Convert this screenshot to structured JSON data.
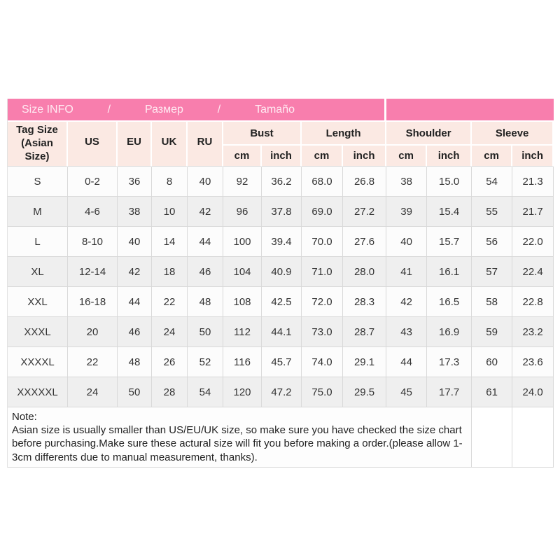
{
  "header": {
    "items": [
      "Size INFO",
      "/",
      "Размер",
      "/",
      "Tamaño"
    ]
  },
  "table": {
    "tag_size_label": "Tag Size\n(Asian Size)",
    "size_columns": [
      "US",
      "EU",
      "UK",
      "RU"
    ],
    "groups": [
      {
        "label": "Bust"
      },
      {
        "label": "Length"
      },
      {
        "label": "Shoulder"
      },
      {
        "label": "Sleeve"
      }
    ],
    "unit_labels": [
      "cm",
      "inch"
    ],
    "rows": [
      {
        "cells": [
          "S",
          "0-2",
          "36",
          "8",
          "40",
          "92",
          "36.2",
          "68.0",
          "26.8",
          "38",
          "15.0",
          "54",
          "21.3"
        ]
      },
      {
        "cells": [
          "M",
          "4-6",
          "38",
          "10",
          "42",
          "96",
          "37.8",
          "69.0",
          "27.2",
          "39",
          "15.4",
          "55",
          "21.7"
        ]
      },
      {
        "cells": [
          "L",
          "8-10",
          "40",
          "14",
          "44",
          "100",
          "39.4",
          "70.0",
          "27.6",
          "40",
          "15.7",
          "56",
          "22.0"
        ]
      },
      {
        "cells": [
          "XL",
          "12-14",
          "42",
          "18",
          "46",
          "104",
          "40.9",
          "71.0",
          "28.0",
          "41",
          "16.1",
          "57",
          "22.4"
        ]
      },
      {
        "cells": [
          "XXL",
          "16-18",
          "44",
          "22",
          "48",
          "108",
          "42.5",
          "72.0",
          "28.3",
          "42",
          "16.5",
          "58",
          "22.8"
        ]
      },
      {
        "cells": [
          "XXXL",
          "20",
          "46",
          "24",
          "50",
          "112",
          "44.1",
          "73.0",
          "28.7",
          "43",
          "16.9",
          "59",
          "23.2"
        ]
      },
      {
        "cells": [
          "XXXXL",
          "22",
          "48",
          "26",
          "52",
          "116",
          "45.7",
          "74.0",
          "29.1",
          "44",
          "17.3",
          "60",
          "23.6"
        ]
      },
      {
        "cells": [
          "XXXXXL",
          "24",
          "50",
          "28",
          "54",
          "120",
          "47.2",
          "75.0",
          "29.5",
          "45",
          "17.7",
          "61",
          "24.0"
        ]
      }
    ]
  },
  "note": {
    "title": "Note:",
    "body": "Asian size is usually smaller than US/EU/UK size, so make sure you have checked the size chart before purchasing.Make sure these actural size will fit you before making a order.(please allow 1-3cm differents due to manual measurement, thanks)."
  },
  "colors": {
    "pink": "#f87ead",
    "pale": "#fbe9e3",
    "stripe": "#efefef",
    "rowbg": "#fcfcfc",
    "grid": "#d9d9d9",
    "pinktext": "#ffeaf2",
    "text": "#333333"
  }
}
